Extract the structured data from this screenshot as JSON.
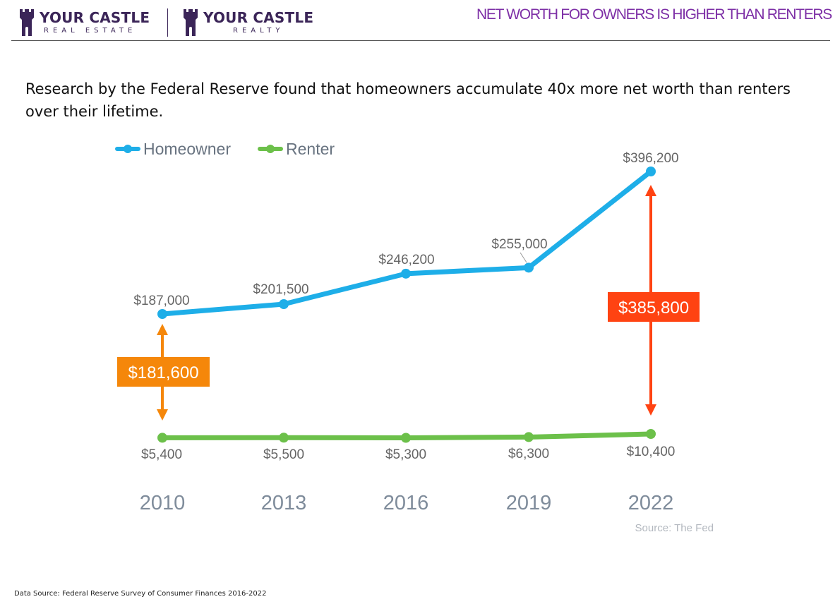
{
  "header": {
    "logos": [
      {
        "name": "YOUR CASTLE",
        "sub": "REAL ESTATE"
      },
      {
        "name": "YOUR CASTLE",
        "sub": "REALTY"
      }
    ],
    "title": "NET WORTH FOR OWNERS IS HIGHER THAN RENTERS"
  },
  "intro_text": "Research by the Federal Reserve found that homeowners accumulate 40x more net worth than renters over their lifetime.",
  "colors": {
    "homeowner": "#1eaee8",
    "renter": "#6cc04a",
    "gap_2010": "#f5870a",
    "gap_2022": "#ff4312",
    "brand": "#3b2558",
    "title": "#7d2fa6"
  },
  "chart_data": {
    "type": "line",
    "categories": [
      "2010",
      "2013",
      "2016",
      "2019",
      "2022"
    ],
    "series": [
      {
        "name": "Homeowner",
        "values": [
          187000,
          201500,
          246200,
          255000,
          396200
        ],
        "labels": [
          "$187,000",
          "$201,500",
          "$246,200",
          "$255,000",
          "$396,200"
        ]
      },
      {
        "name": "Renter",
        "values": [
          5400,
          5500,
          5300,
          6300,
          10400
        ],
        "labels": [
          "$5,400",
          "$5,500",
          "$5,300",
          "$6,300",
          "$10,400"
        ]
      }
    ],
    "annotations": [
      {
        "category": "2010",
        "value": 181600,
        "label": "$181,600"
      },
      {
        "category": "2022",
        "value": 385800,
        "label": "$385,800"
      }
    ],
    "source_note": "Source: The Fed",
    "ylim": [
      0,
      400000
    ],
    "legend_position": "top-left",
    "grid": false
  },
  "footer": {
    "text": "Data Source: Federal Reserve Survey of Consumer Finances 2016-2022"
  }
}
